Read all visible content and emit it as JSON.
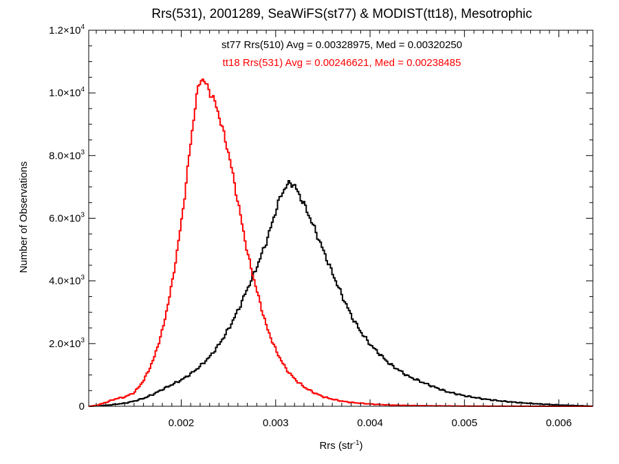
{
  "chart_data": {
    "type": "line",
    "title": "Rrs(531), 2001289, SeaWiFS(st77) & MODIST(tt18), Mesotrophic",
    "xlabel": "Rrs (str",
    "xlabel_sup": "-1",
    "xlabel_close": ")",
    "ylabel": "Number of Observations",
    "xlim": [
      0.00102,
      0.00636
    ],
    "ylim": [
      0,
      12000
    ],
    "grid": false,
    "x_ticks": [
      {
        "value": 0.002,
        "label": "0.002"
      },
      {
        "value": 0.003,
        "label": "0.003"
      },
      {
        "value": 0.004,
        "label": "0.004"
      },
      {
        "value": 0.005,
        "label": "0.005"
      },
      {
        "value": 0.006,
        "label": "0.006"
      }
    ],
    "y_ticks": [
      {
        "value": 0,
        "base": "0",
        "exp": ""
      },
      {
        "value": 2000,
        "base": "2.0×10",
        "exp": "3"
      },
      {
        "value": 4000,
        "base": "4.0×10",
        "exp": "3"
      },
      {
        "value": 6000,
        "base": "6.0×10",
        "exp": "3"
      },
      {
        "value": 8000,
        "base": "8.0×10",
        "exp": "3"
      },
      {
        "value": 10000,
        "base": "1.0×10",
        "exp": "4"
      },
      {
        "value": 12000,
        "base": "1.2×10",
        "exp": "4"
      }
    ],
    "annotations": [
      {
        "text": "st77 Rrs(510) Avg = 0.00328975, Med = 0.00320250",
        "color": "#000000"
      },
      {
        "text": "tt18 Rrs(531) Avg = 0.00246621, Med = 0.00238485",
        "color": "#ff0000"
      }
    ],
    "series": [
      {
        "color": "#000000",
        "x": [
          0.00102,
          0.0012,
          0.0014,
          0.0015,
          0.0016,
          0.0017,
          0.0018,
          0.0019,
          0.002,
          0.0021,
          0.0022,
          0.0023,
          0.0024,
          0.0025,
          0.0026,
          0.0027,
          0.0028,
          0.0029,
          0.003,
          0.00305,
          0.0031,
          0.00315,
          0.0032,
          0.00325,
          0.0033,
          0.0034,
          0.0035,
          0.0036,
          0.0037,
          0.0038,
          0.0039,
          0.004,
          0.0042,
          0.0044,
          0.0046,
          0.0048,
          0.005,
          0.0052,
          0.0054,
          0.0056,
          0.0058,
          0.006,
          0.00636
        ],
        "y": [
          0,
          30,
          100,
          170,
          260,
          390,
          550,
          700,
          850,
          1050,
          1300,
          1600,
          2000,
          2500,
          3100,
          3800,
          4500,
          5300,
          6300,
          6750,
          7000,
          7150,
          7000,
          6700,
          6400,
          5700,
          4950,
          4200,
          3500,
          2850,
          2350,
          1950,
          1350,
          950,
          700,
          470,
          330,
          230,
          160,
          110,
          70,
          40,
          0
        ]
      },
      {
        "color": "#ff0000",
        "x": [
          0.00102,
          0.0011,
          0.0012,
          0.0013,
          0.0014,
          0.0015,
          0.0016,
          0.0017,
          0.0018,
          0.0019,
          0.002,
          0.0021,
          0.00215,
          0.0022,
          0.00225,
          0.0023,
          0.00235,
          0.0024,
          0.0025,
          0.0026,
          0.0027,
          0.0028,
          0.0029,
          0.003,
          0.0031,
          0.0032,
          0.0033,
          0.0034,
          0.0035,
          0.0036,
          0.0037,
          0.0038,
          0.004,
          0.0042,
          0.0044,
          0.0046,
          0.0048,
          0.005,
          0.0055,
          0.006,
          0.00636
        ],
        "y": [
          0,
          30,
          130,
          240,
          300,
          450,
          850,
          1500,
          2500,
          4000,
          6000,
          8600,
          9800,
          10500,
          10300,
          10000,
          9700,
          9200,
          8000,
          6400,
          4800,
          3600,
          2500,
          1750,
          1200,
          850,
          600,
          430,
          300,
          220,
          160,
          120,
          70,
          40,
          25,
          15,
          10,
          5,
          2,
          0,
          0
        ]
      }
    ]
  }
}
